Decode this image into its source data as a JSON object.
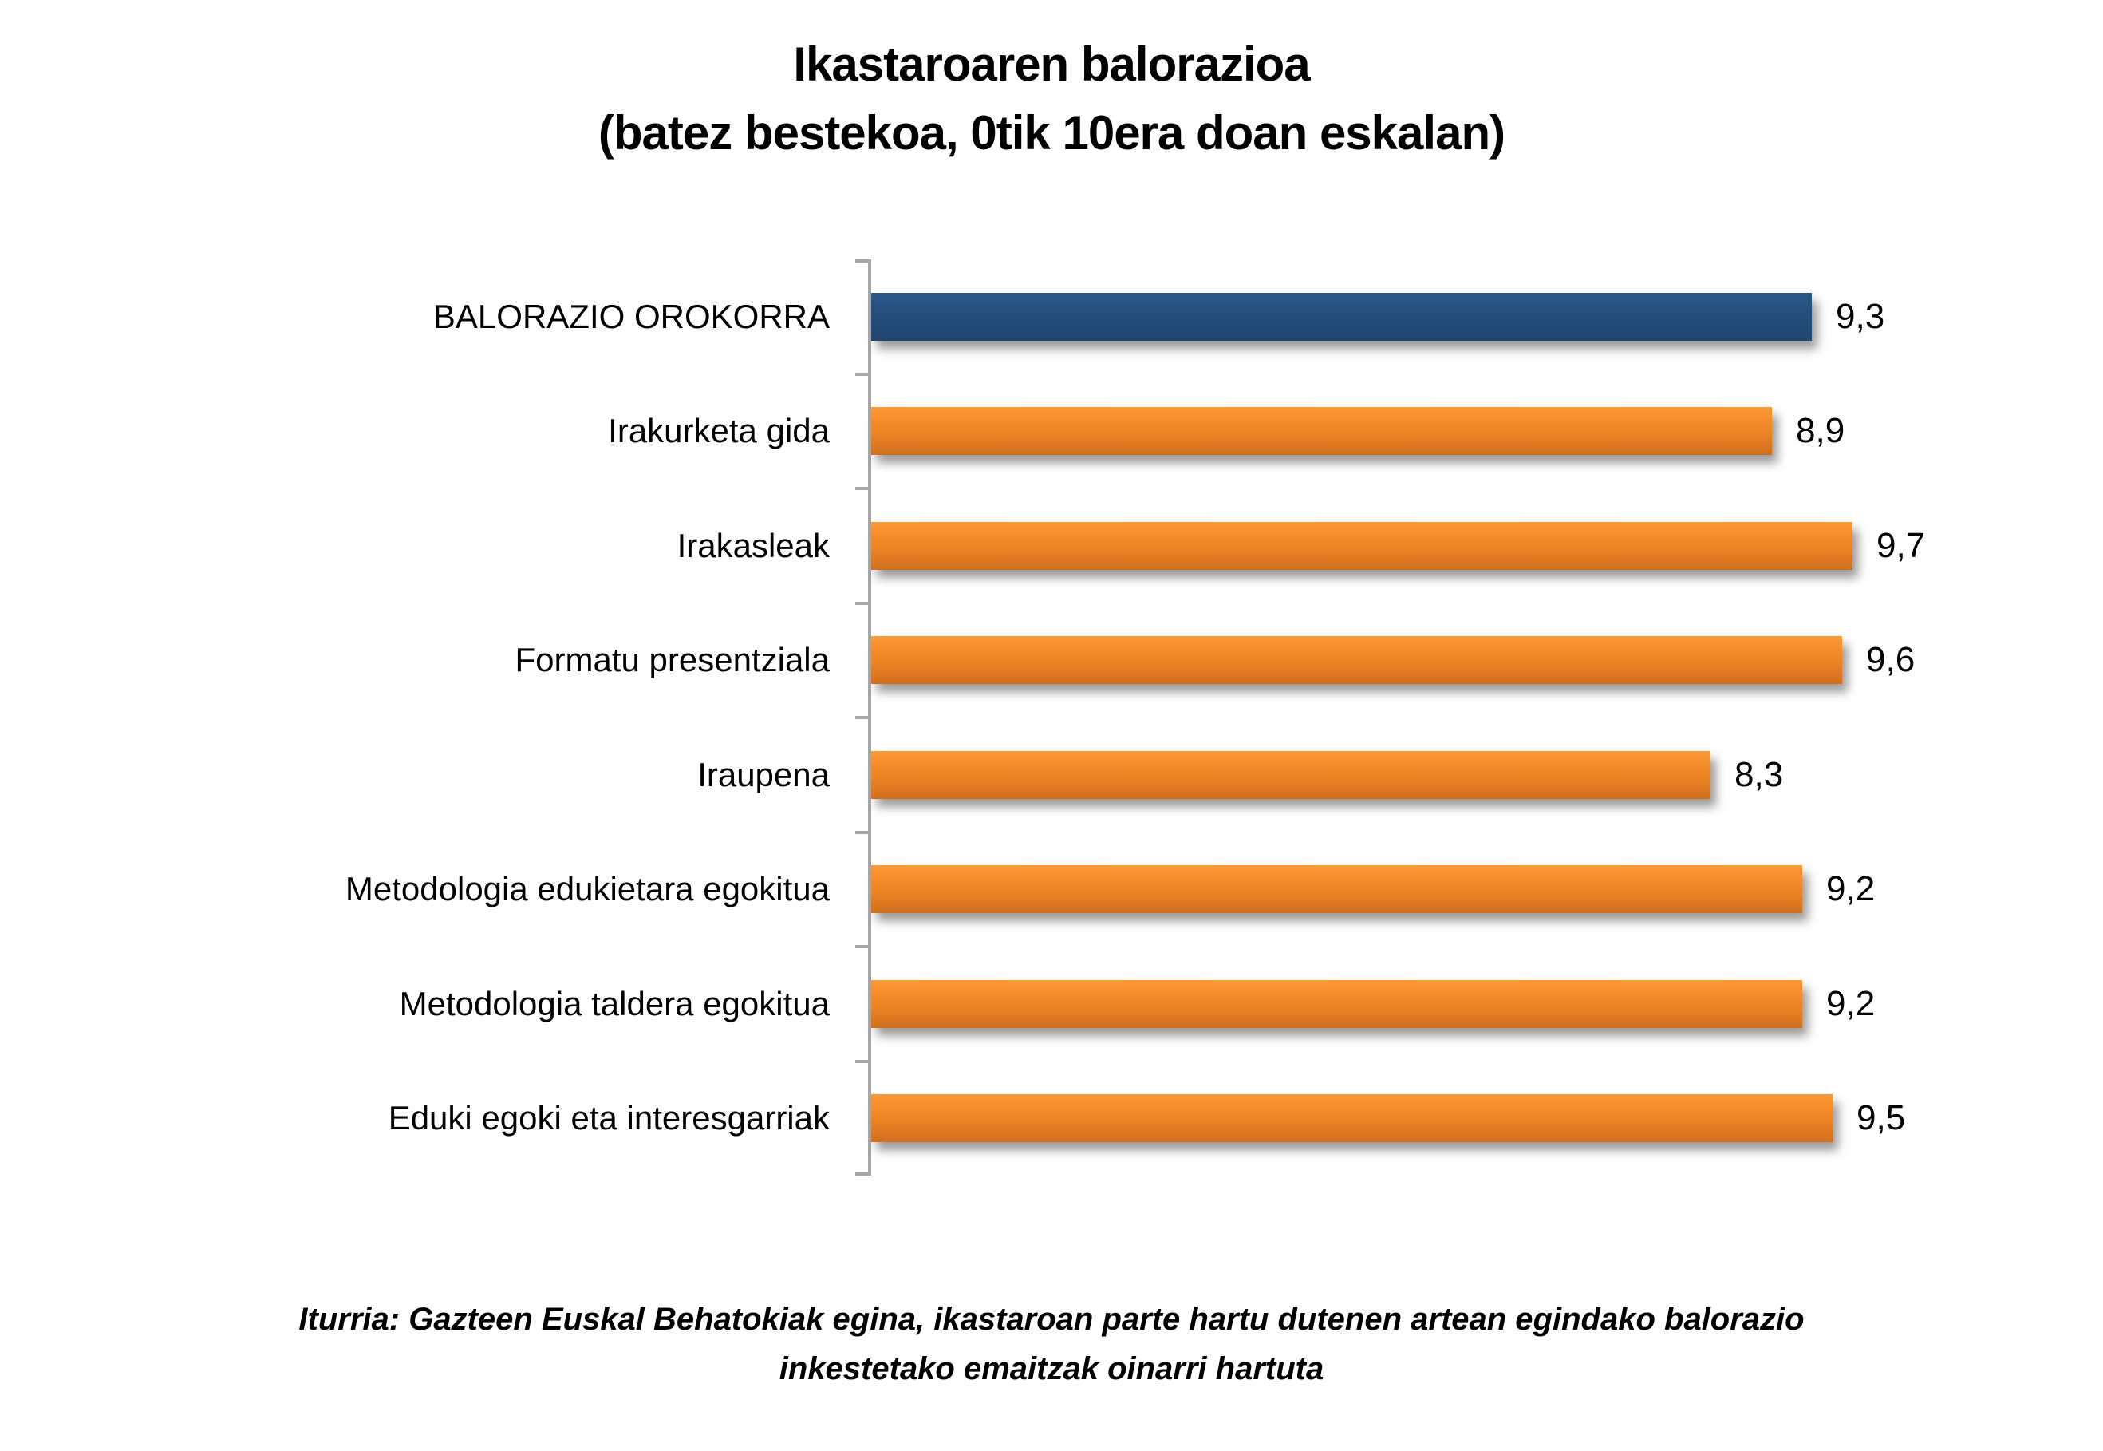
{
  "title": {
    "line1": "Ikastaroaren balorazioa",
    "line2": "(batez bestekoa, 0tik 10era doan eskalan)"
  },
  "footer": {
    "source_text": "Iturria: Gazteen Euskal Behatokiak egina, ikastaroan parte hartu dutenen artean egindako balorazio inkestetako emaitzak oinarri hartuta"
  },
  "chart_data": {
    "type": "bar",
    "orientation": "horizontal",
    "title": "Ikastaroaren balorazioa (batez bestekoa, 0tik 10era doan eskalan)",
    "categories": [
      "BALORAZIO OROKORRA",
      "Irakurketa gida",
      "Irakasleak",
      "Formatu presentziala",
      "Iraupena",
      "Metodologia edukietara egokitua",
      "Metodologia taldera egokitua",
      "Eduki egoki eta interesgarriak"
    ],
    "values": [
      9.3,
      8.9,
      9.7,
      9.6,
      8.3,
      9.2,
      9.2,
      9.5
    ],
    "values_display": [
      "9,3",
      "8,9",
      "9,7",
      "9,6",
      "8,3",
      "9,2",
      "9,2",
      "9,5"
    ],
    "xlim": [
      0,
      10
    ],
    "grid": false,
    "legend": "none",
    "data_labels": "outside-end",
    "highlight_index": 0,
    "bar_colors": [
      "#254E7C",
      "#F08A28",
      "#F08A28",
      "#F08A28",
      "#F08A28",
      "#F08A28",
      "#F08A28",
      "#F08A28"
    ],
    "accent_blue": "#254E7C",
    "accent_orange": "#F08A28",
    "axis_color": "#A6A6A6"
  }
}
